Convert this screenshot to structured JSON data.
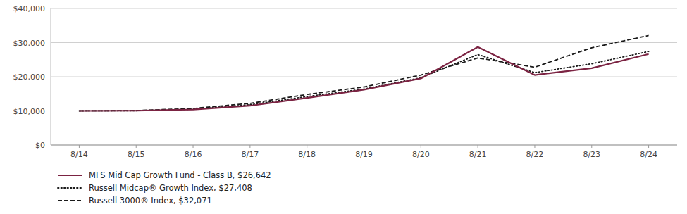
{
  "chart_data": {
    "type": "line",
    "categories": [
      "8/14",
      "8/15",
      "8/16",
      "8/17",
      "8/18",
      "8/19",
      "8/20",
      "8/21",
      "8/22",
      "8/23",
      "8/24"
    ],
    "series": [
      {
        "name": "MFS Mid Cap Growth Fund - Class B, $26,642",
        "color": "#7b2342",
        "line_style": "solid",
        "values": [
          10000,
          10050,
          10400,
          11500,
          13800,
          16200,
          19500,
          28700,
          20500,
          22500,
          26642
        ]
      },
      {
        "name": "Russell Midcap® Growth Index, $27,408",
        "color": "#1a1a1a",
        "line_style": "dotted",
        "values": [
          10000,
          10050,
          10500,
          11800,
          14200,
          16400,
          19700,
          26500,
          21200,
          23800,
          27408
        ]
      },
      {
        "name": "Russell 3000® Index, $32,071",
        "color": "#1a1a1a",
        "line_style": "dashed",
        "values": [
          10000,
          10100,
          10700,
          12200,
          14800,
          17000,
          20500,
          25500,
          22800,
          28500,
          32071
        ]
      }
    ],
    "ylim": [
      0,
      40000
    ],
    "yticks": [
      {
        "value": 0,
        "label": "$0"
      },
      {
        "value": 10000,
        "label": "$10,000"
      },
      {
        "value": 20000,
        "label": "$20,000"
      },
      {
        "value": 30000,
        "label": "$30,000"
      },
      {
        "value": 40000,
        "label": "$40,000"
      }
    ],
    "grid": true,
    "legend": "bottom"
  }
}
